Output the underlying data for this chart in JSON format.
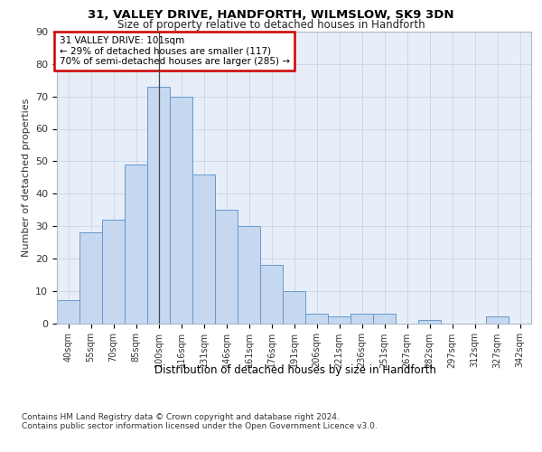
{
  "title1": "31, VALLEY DRIVE, HANDFORTH, WILMSLOW, SK9 3DN",
  "title2": "Size of property relative to detached houses in Handforth",
  "xlabel": "Distribution of detached houses by size in Handforth",
  "ylabel": "Number of detached properties",
  "categories": [
    "40sqm",
    "55sqm",
    "70sqm",
    "85sqm",
    "100sqm",
    "116sqm",
    "131sqm",
    "146sqm",
    "161sqm",
    "176sqm",
    "191sqm",
    "206sqm",
    "221sqm",
    "236sqm",
    "251sqm",
    "267sqm",
    "282sqm",
    "297sqm",
    "312sqm",
    "327sqm",
    "342sqm"
  ],
  "values": [
    7,
    28,
    32,
    49,
    73,
    70,
    46,
    35,
    30,
    18,
    10,
    3,
    2,
    3,
    3,
    0,
    1,
    0,
    0,
    2,
    0
  ],
  "bar_color": "#c5d8f0",
  "bar_edge_color": "#6699cc",
  "highlight_index": 4,
  "highlight_line_color": "#444444",
  "annotation_text": "31 VALLEY DRIVE: 101sqm\n← 29% of detached houses are smaller (117)\n70% of semi-detached houses are larger (285) →",
  "annotation_box_color": "#ffffff",
  "annotation_box_edge": "#cc0000",
  "grid_color": "#c8d4e8",
  "background_color": "#e8eef8",
  "footer1": "Contains HM Land Registry data © Crown copyright and database right 2024.",
  "footer2": "Contains public sector information licensed under the Open Government Licence v3.0.",
  "ylim": [
    0,
    90
  ],
  "yticks": [
    0,
    10,
    20,
    30,
    40,
    50,
    60,
    70,
    80,
    90
  ]
}
